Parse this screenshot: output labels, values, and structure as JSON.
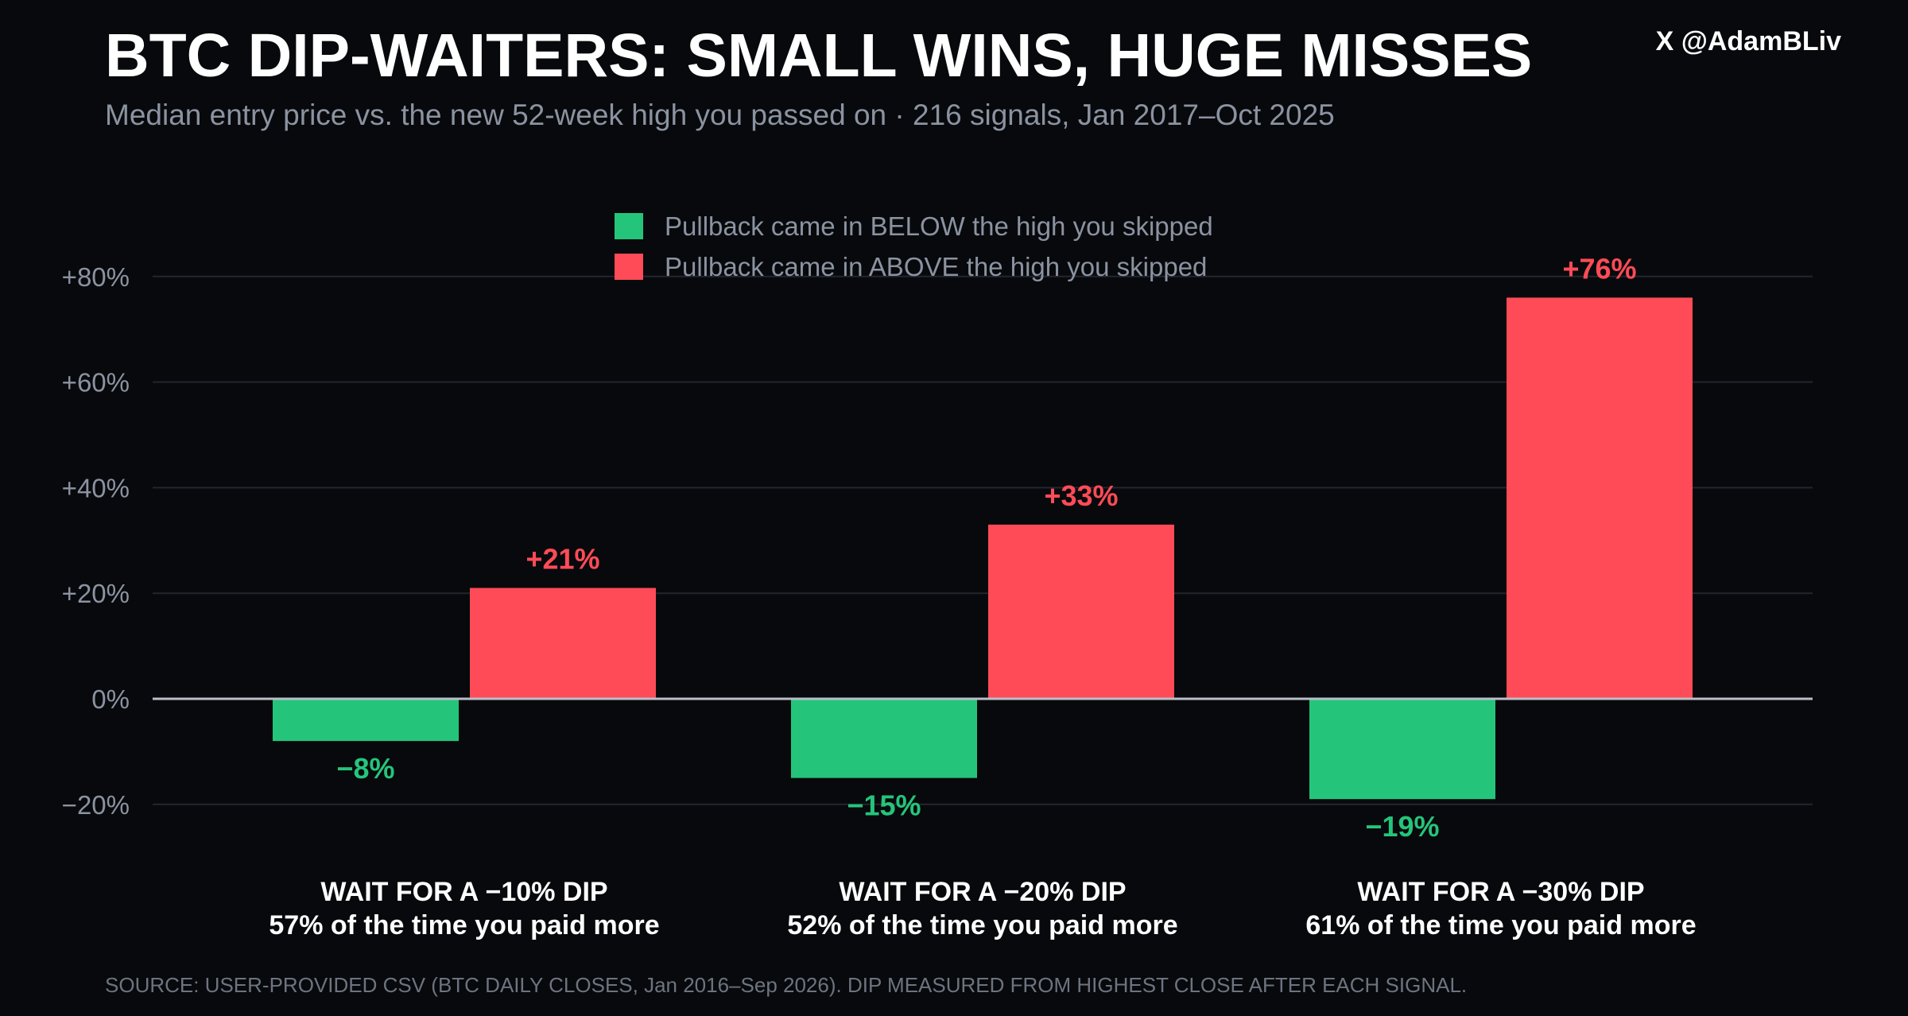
{
  "header": {
    "title": "BTC DIP-WAITERS: SMALL WINS, HUGE MISSES",
    "subtitle": "Median entry price vs. the new 52-week high you passed on · 216 signals, Jan 2017–Oct 2025",
    "handle": "X @AdamBLiv"
  },
  "footer": {
    "source": "SOURCE: USER-PROVIDED CSV (BTC DAILY CLOSES, Jan 2016–Sep 2026). DIP MEASURED FROM HIGHEST CLOSE AFTER EACH SIGNAL."
  },
  "colors": {
    "background": "#08090c",
    "below": "#24c57a",
    "above": "#ff4b57",
    "grid": "#232630",
    "zero_line": "#b9bec8",
    "tick_text": "#8b93a1",
    "legend_text": "#8b93a1",
    "category_text": "#ffffff"
  },
  "chart_data": {
    "type": "bar",
    "categories": [
      {
        "label": "WAIT FOR A −10% DIP",
        "note": "57% of the time you paid more"
      },
      {
        "label": "WAIT FOR A −20% DIP",
        "note": "52% of the time you paid more"
      },
      {
        "label": "WAIT FOR A −30% DIP",
        "note": "61% of the time you paid more"
      }
    ],
    "series": [
      {
        "name": "Pullback came in BELOW the high you skipped",
        "color": "#24c57a",
        "values": [
          -8,
          -15,
          -19
        ],
        "labels": [
          "−8%",
          "−15%",
          "−19%"
        ]
      },
      {
        "name": "Pullback came in ABOVE the high you skipped",
        "color": "#ff4b57",
        "values": [
          21,
          33,
          76
        ],
        "labels": [
          "+21%",
          "+33%",
          "+76%"
        ]
      }
    ],
    "ylim": [
      -30,
      80
    ],
    "yticks": [
      {
        "value": 80,
        "label": "+80%"
      },
      {
        "value": 60,
        "label": "+60%"
      },
      {
        "value": 40,
        "label": "+40%"
      },
      {
        "value": 20,
        "label": "+20%"
      },
      {
        "value": 0,
        "label": "0%"
      },
      {
        "value": -20,
        "label": "−20%"
      }
    ],
    "grid": true,
    "legend_position": "top-center"
  }
}
